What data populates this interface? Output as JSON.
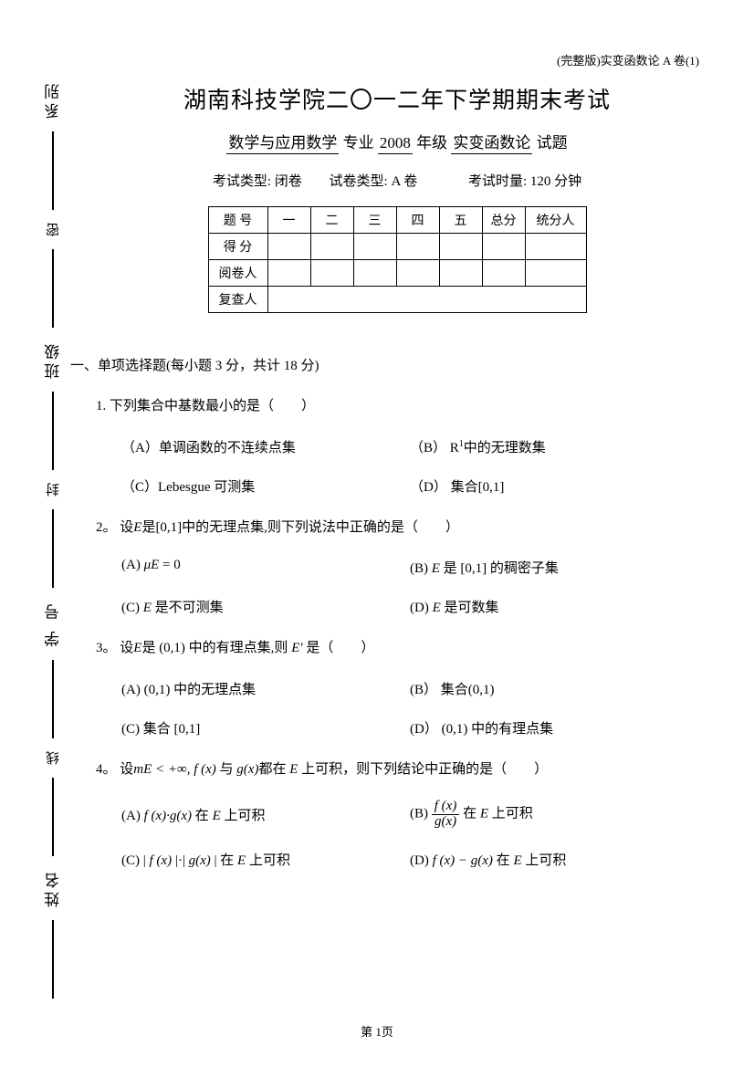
{
  "header": {
    "tag": "(完整版)实变函数论 A 卷(1)"
  },
  "title": "湖南科技学院二〇一二年下学期期末考试",
  "subtitle": {
    "major": "数学与应用数学",
    "major_suffix": "专业",
    "year": "2008",
    "year_suffix": "年级",
    "course": "实变函数论",
    "course_suffix": "试题"
  },
  "meta": {
    "exam_type_label": "考试类型:",
    "exam_type": "闭卷",
    "paper_type_label": "试卷类型:",
    "paper_type": "A 卷",
    "duration_label": "考试时量:",
    "duration": "120 分钟"
  },
  "score_table": {
    "rows": [
      "题 号",
      "得 分",
      "阅卷人",
      "复查人"
    ],
    "cols": [
      "一",
      "二",
      "三",
      "四",
      "五",
      "总分",
      "统分人"
    ]
  },
  "section1": {
    "heading": "一、单项选择题(每小题 3 分，共计 18 分)",
    "q1": {
      "text": "1. 下列集合中基数最小的是（　　）",
      "A": "（A）单调函数的不连续点集",
      "B_pre": "（B） R",
      "B_sup": "1",
      "B_post": "中的无理数集",
      "C": "（C）Lebesgue 可测集",
      "D": "（D） 集合[0,1]"
    },
    "q2": {
      "text_pre": "2。 设",
      "E": "E",
      "text_mid": "是[0,1]中的无理点集,则下列说法中正确的是（　　）",
      "A_pre": "(A)  ",
      "A_mu": "μE",
      "A_eq": " = 0",
      "B_pre": "(B) ",
      "B_E": "E",
      "B_post": " 是 [0,1] 的稠密子集",
      "C_pre": "(C)  ",
      "C_E": "E",
      "C_post": " 是不可测集",
      "D_pre": "(D)  ",
      "D_E": "E",
      "D_post": " 是可数集"
    },
    "q3": {
      "text_pre": "3。 设",
      "E": "E",
      "text_mid": "是 (0,1) 中的有理点集,则",
      "Eder": "E'",
      "text_post": "是（　　）",
      "A": "(A)  (0,1) 中的无理点集",
      "B": "(B） 集合(0,1)",
      "C": "(C) 集合 [0,1]",
      "D": "(D） (0,1) 中的有理点集"
    },
    "q4": {
      "text_pre": "4。 设",
      "mE": "mE < +∞",
      "comma": ", ",
      "fx": "f (x)",
      "and": " 与 ",
      "gx": "g(x)",
      "text_post": "都在 ",
      "E2": "E",
      "tail": " 上可积，则下列结论中正确的是（　　）",
      "A_pre": "(A)  ",
      "A_f": "f (x)·g(x)",
      "A_post": " 在 ",
      "A_E": "E",
      "A_tail": " 上可积",
      "B_pre": "(B)  ",
      "B_num": "f (x)",
      "B_den": "g(x)",
      "B_post": " 在 ",
      "B_E": "E",
      "B_tail": " 上可积",
      "C_pre": "(C) | ",
      "C_f": "f (x)",
      "C_mid": " |·| ",
      "C_g": "g(x)",
      "C_bar": " | 在 ",
      "C_E": "E",
      "C_tail": " 上可积",
      "D_pre": "(D)  ",
      "D_f": "f (x) − g(x)",
      "D_post": " 在 ",
      "D_E": "E",
      "D_tail": " 上可积"
    }
  },
  "margin": {
    "labels": [
      "系别",
      "班级",
      "学 号",
      "姓名"
    ],
    "seals": [
      "密",
      "封",
      "线"
    ]
  },
  "footer": {
    "pagenum": "第 1页"
  }
}
